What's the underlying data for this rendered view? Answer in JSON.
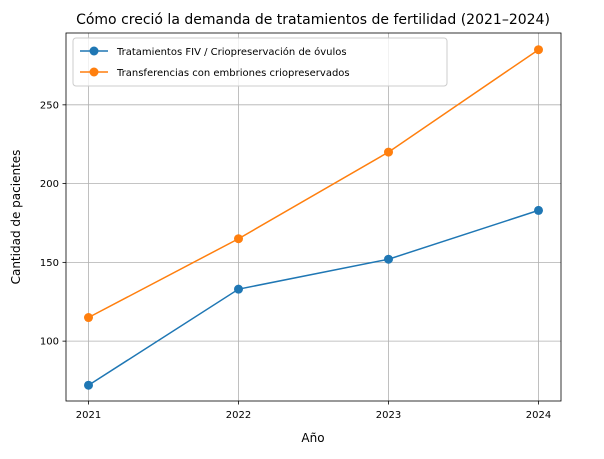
{
  "chart_data": {
    "type": "line",
    "title": "Cómo creció la demanda de tratamientos de fertilidad (2021–2024)",
    "xlabel": "Año",
    "ylabel": "Cantidad de pacientes",
    "x": [
      2021,
      2022,
      2023,
      2024
    ],
    "x_tick_labels": [
      "2021",
      "2022",
      "2023",
      "2024"
    ],
    "y_ticks": [
      100,
      150,
      200,
      250
    ],
    "y_tick_labels": [
      "100",
      "150",
      "200",
      "250"
    ],
    "xlim": [
      2020.85,
      2024.15
    ],
    "ylim": [
      62,
      295.6
    ],
    "grid": true,
    "legend_position": "top-left",
    "series": [
      {
        "name": "Tratamientos FIV / Criopreservación de óvulos",
        "color": "#1f77b4",
        "values": [
          72,
          133,
          152,
          183
        ]
      },
      {
        "name": "Transferencias con embriones criopreservados",
        "color": "#ff7f0e",
        "values": [
          115,
          165,
          220,
          285
        ]
      }
    ]
  }
}
